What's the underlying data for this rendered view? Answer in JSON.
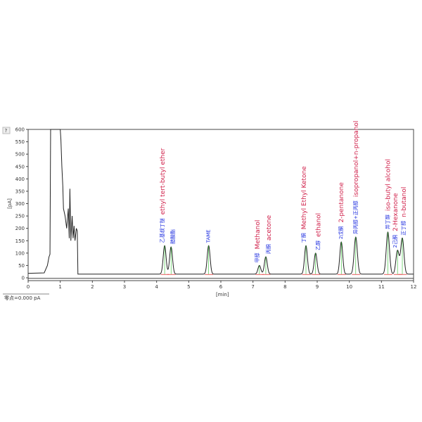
{
  "chart_data": {
    "type": "line",
    "title": "",
    "xlabel": "[min]",
    "ylabel": "[pA]",
    "xlim": [
      0,
      12
    ],
    "ylim": [
      0,
      600
    ],
    "xticks": [
      0,
      1,
      2,
      3,
      4,
      5,
      6,
      7,
      8,
      9,
      10,
      11,
      12
    ],
    "yticks": [
      0,
      50,
      100,
      150,
      200,
      250,
      300,
      350,
      400,
      450,
      500,
      550,
      600
    ],
    "footer": "零点=0.000 pA",
    "corner_button": "?",
    "baseline": 15,
    "solvent_trace": [
      [
        0,
        18
      ],
      [
        0.5,
        20
      ],
      [
        0.6,
        50
      ],
      [
        0.65,
        85
      ],
      [
        0.68,
        95
      ],
      [
        0.7,
        600
      ],
      [
        1.0,
        600
      ],
      [
        1.02,
        560
      ],
      [
        1.05,
        450
      ],
      [
        1.08,
        370
      ],
      [
        1.1,
        280
      ],
      [
        1.15,
        250
      ],
      [
        1.2,
        200
      ],
      [
        1.25,
        280
      ],
      [
        1.28,
        160
      ],
      [
        1.3,
        360
      ],
      [
        1.33,
        150
      ],
      [
        1.37,
        250
      ],
      [
        1.4,
        160
      ],
      [
        1.43,
        210
      ],
      [
        1.46,
        150
      ],
      [
        1.5,
        200
      ],
      [
        1.53,
        190
      ],
      [
        1.55,
        15
      ]
    ],
    "peaks": [
      {
        "rt": 4.25,
        "height": 130,
        "cn": "乙基叔丁醚",
        "en": "ethyl tert-butyl ether"
      },
      {
        "rt": 4.45,
        "height": 125,
        "cn": "醋酸酯",
        "en": ""
      },
      {
        "rt": 5.62,
        "height": 130,
        "cn": "TAME",
        "en": ""
      },
      {
        "rt": 7.2,
        "height": 50,
        "cn": "甲醇",
        "en": "Methanol"
      },
      {
        "rt": 7.4,
        "height": 85,
        "cn": "丙酮",
        "en": "acetone"
      },
      {
        "rt": 8.65,
        "height": 130,
        "cn": "丁酮",
        "en": "Methyl Ethyl Ketone"
      },
      {
        "rt": 8.95,
        "height": 100,
        "cn": "乙醇",
        "en": "ethanol"
      },
      {
        "rt": 9.75,
        "height": 145,
        "cn": "2戊酮",
        "en": "2-pentanone"
      },
      {
        "rt": 10.2,
        "height": 165,
        "cn": "异丙醇+正丙醇",
        "en": "isopropanol+n-propanol"
      },
      {
        "rt": 11.2,
        "height": 185,
        "cn": "异丁醇",
        "en": "iso-butyl alcohol"
      },
      {
        "rt": 11.5,
        "height": 110,
        "cn": "2己酮",
        "en": "2-Hexanone"
      },
      {
        "rt": 11.65,
        "height": 160,
        "cn": "正丁醇",
        "en": "n-butanol"
      }
    ],
    "colors": {
      "trace": "#222222",
      "baseline_marks": "#e03030",
      "integration": "#30c030",
      "english_labels": "#d0204a",
      "chinese_labels": "#2030e0"
    }
  }
}
